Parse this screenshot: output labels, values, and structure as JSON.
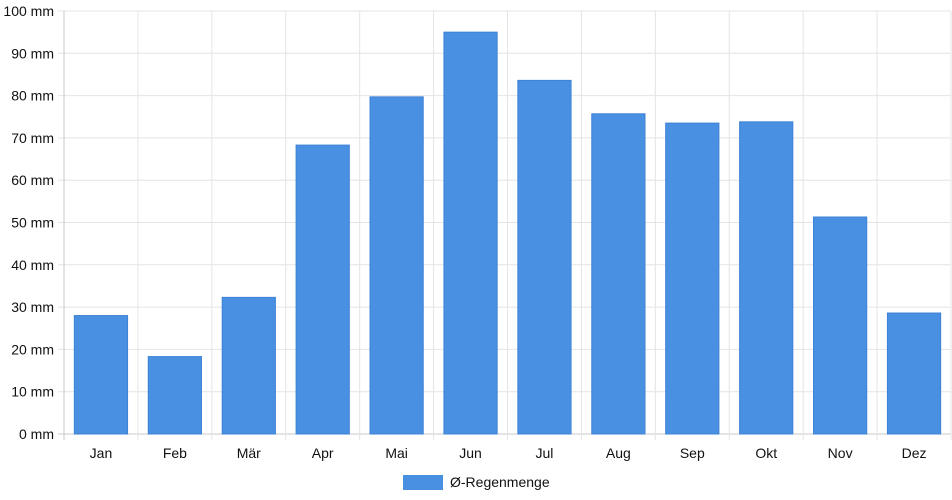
{
  "chart_data": {
    "type": "bar",
    "categories": [
      "Jan",
      "Feb",
      "Mär",
      "Apr",
      "Mai",
      "Jun",
      "Jul",
      "Aug",
      "Sep",
      "Okt",
      "Nov",
      "Dez"
    ],
    "series": [
      {
        "name": "Ø-Regenmenge",
        "color": "#4a90e2",
        "values": [
          28.0,
          18.3,
          32.3,
          68.3,
          79.7,
          95.0,
          83.6,
          75.7,
          73.5,
          73.8,
          51.3,
          28.6
        ]
      }
    ],
    "yticks": [
      "0 mm",
      "10 mm",
      "20 mm",
      "30 mm",
      "40 mm",
      "50 mm",
      "60 mm",
      "70 mm",
      "80 mm",
      "90 mm",
      "100 mm"
    ],
    "ylim": [
      0,
      100
    ],
    "grid": true,
    "legend_position": "bottom"
  }
}
